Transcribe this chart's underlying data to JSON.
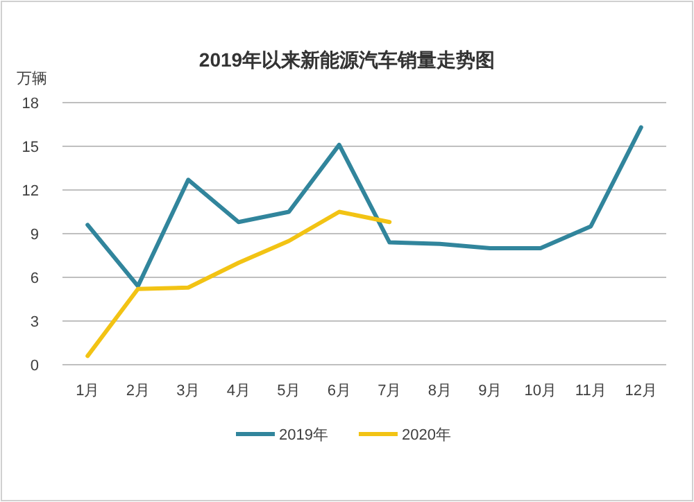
{
  "chart_data": {
    "type": "line",
    "title": "2019年以来新能源汽车销量走势图",
    "ylabel": "万辆",
    "categories": [
      "1月",
      "2月",
      "3月",
      "4月",
      "5月",
      "6月",
      "7月",
      "8月",
      "9月",
      "10月",
      "11月",
      "12月"
    ],
    "ylim": [
      0,
      18
    ],
    "yticks": [
      0,
      3,
      6,
      9,
      12,
      15,
      18
    ],
    "grid": "y",
    "legend": "bottom",
    "series": [
      {
        "name": "2019年",
        "color": "#31859c",
        "values": [
          9.6,
          5.4,
          12.7,
          9.8,
          10.5,
          15.1,
          8.4,
          8.3,
          8.0,
          8.0,
          9.5,
          16.3
        ]
      },
      {
        "name": "2020年",
        "color": "#f2c314",
        "values": [
          0.6,
          5.2,
          5.3,
          7.0,
          8.5,
          10.5,
          9.8,
          null,
          null,
          null,
          null,
          null
        ]
      }
    ]
  }
}
